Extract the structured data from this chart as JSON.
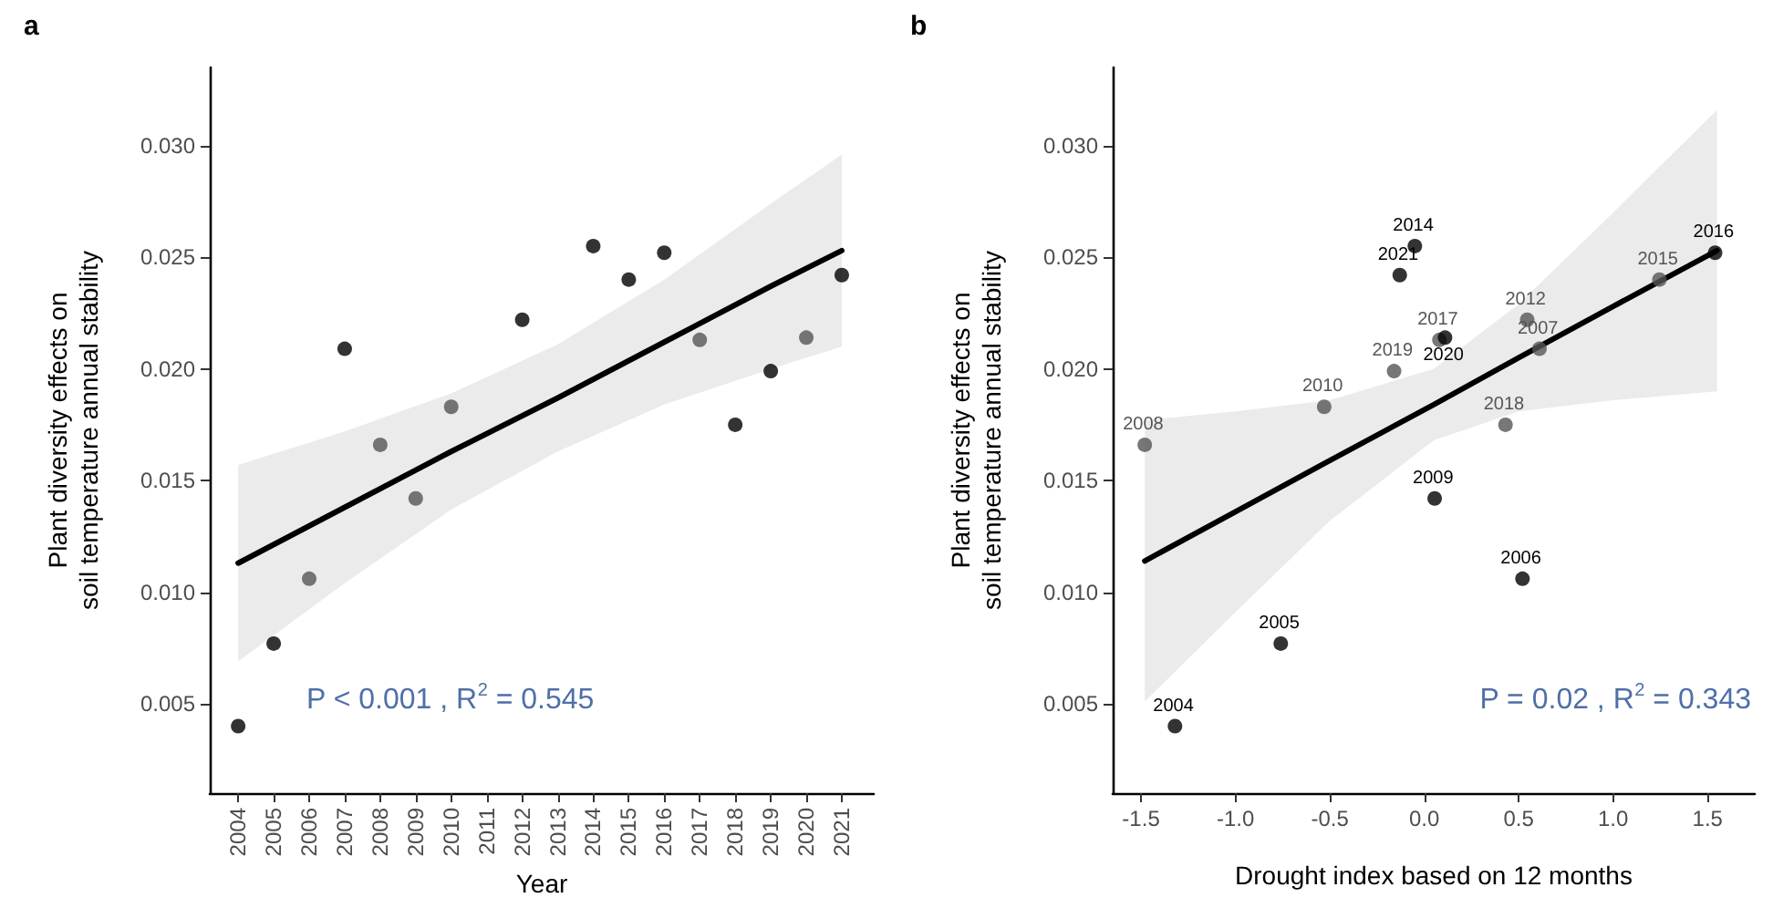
{
  "chart_data": [
    {
      "type": "scatter",
      "title": "a",
      "xlabel": "Year",
      "ylabel": "Plant diversity effects on\nsoil temperature annual stability",
      "xlim": [
        2003.2,
        2021.9
      ],
      "xticks": [
        2004,
        2005,
        2006,
        2007,
        2008,
        2009,
        2010,
        2011,
        2012,
        2013,
        2014,
        2015,
        2016,
        2017,
        2018,
        2019,
        2020,
        2021
      ],
      "ylim": [
        0.001,
        0.0335
      ],
      "yticks": [
        {
          "value": 0.005,
          "label": "0.005"
        },
        {
          "value": 0.01,
          "label": "0.010"
        },
        {
          "value": 0.015,
          "label": "0.015"
        },
        {
          "value": 0.02,
          "label": "0.020"
        },
        {
          "value": 0.025,
          "label": "0.025"
        },
        {
          "value": 0.03,
          "label": "0.030"
        }
      ],
      "grid": false,
      "annotations": [
        "P < 0.001 , R$^{2}$ = 0.545"
      ],
      "series": [
        {
          "marker": "circle",
          "x": [
            2004,
            2005,
            2006,
            2007,
            2008,
            2009,
            2010,
            2012,
            2014,
            2015,
            2016,
            2017,
            2018,
            2019,
            2020,
            2021
          ],
          "values": [
            0.004,
            0.0077,
            0.0106,
            0.0209,
            0.0166,
            0.0142,
            0.0183,
            0.0222,
            0.0255,
            0.024,
            0.0252,
            0.0213,
            0.0175,
            0.0199,
            0.0214,
            0.0242
          ],
          "colors": [
            "#000000",
            "#000000",
            "#555555",
            "#000000",
            "#555555",
            "#555555",
            "#555555",
            "#000000",
            "#000000",
            "#000000",
            "#000000",
            "#555555",
            "#000000",
            "#000000",
            "#555555",
            "#000000"
          ]
        },
        {
          "type": "line",
          "color": "#000000",
          "line_style": "solid",
          "x": [
            2004,
            2007,
            2010,
            2013,
            2016,
            2019,
            2021
          ],
          "values": [
            0.0113,
            0.0138,
            0.0163,
            0.0187,
            0.0212,
            0.0237,
            0.0253
          ],
          "lower": [
            0.0069,
            0.0104,
            0.0137,
            0.0163,
            0.0184,
            0.02,
            0.021
          ],
          "upper": [
            0.0157,
            0.0172,
            0.0189,
            0.0211,
            0.024,
            0.0274,
            0.0296
          ]
        }
      ]
    },
    {
      "type": "scatter",
      "title": "b",
      "xlabel": "Drought index based on 12 months",
      "ylabel": "Plant diversity effects on\nsoil temperature annual stability",
      "xlim": [
        -1.65,
        1.75
      ],
      "xticks": [
        {
          "value": -1.5,
          "label": "-1.5"
        },
        {
          "value": -1,
          "label": "-1.0"
        },
        {
          "value": -0.5,
          "label": "-0.5"
        },
        {
          "value": 0,
          "label": "0.0"
        },
        {
          "value": 0.5,
          "label": "0.5"
        },
        {
          "value": 1,
          "label": "1.0"
        },
        {
          "value": 1.5,
          "label": "1.5"
        }
      ],
      "ylim": [
        0.001,
        0.0335
      ],
      "yticks": [
        {
          "value": 0.005,
          "label": "0.005"
        },
        {
          "value": 0.01,
          "label": "0.010"
        },
        {
          "value": 0.015,
          "label": "0.015"
        },
        {
          "value": 0.02,
          "label": "0.020"
        },
        {
          "value": 0.025,
          "label": "0.025"
        },
        {
          "value": 0.03,
          "label": "0.030"
        }
      ],
      "grid": false,
      "annotations": [
        "P = 0.02 , R$^{2}$ = 0.343",
        {
          "text": "2004",
          "x": -1.32,
          "y": 0.004
        },
        {
          "text": "2005",
          "x": -0.76,
          "y": 0.0077
        },
        {
          "text": "2006",
          "x": 0.52,
          "y": 0.0106
        },
        {
          "text": "2007",
          "x": 0.61,
          "y": 0.0209
        },
        {
          "text": "2008",
          "x": -1.48,
          "y": 0.0166
        },
        {
          "text": "2009",
          "x": 0.055,
          "y": 0.0142
        },
        {
          "text": "2010",
          "x": -0.53,
          "y": 0.0183
        },
        {
          "text": "2012",
          "x": 0.545,
          "y": 0.0222
        },
        {
          "text": "2014",
          "x": -0.05,
          "y": 0.0255
        },
        {
          "text": "2015",
          "x": 1.245,
          "y": 0.024
        },
        {
          "text": "2016",
          "x": 1.54,
          "y": 0.0252
        },
        {
          "text": "2017",
          "x": 0.08,
          "y": 0.0213
        },
        {
          "text": "2018",
          "x": 0.43,
          "y": 0.0175
        },
        {
          "text": "2019",
          "x": -0.16,
          "y": 0.0199
        },
        {
          "text": "2020",
          "x": 0.11,
          "y": 0.0214
        },
        {
          "text": "2021",
          "x": -0.13,
          "y": 0.0242
        }
      ],
      "series": [
        {
          "marker": "circle",
          "x": [
            -1.32,
            -0.76,
            0.52,
            0.61,
            -1.48,
            0.055,
            -0.53,
            0.545,
            -0.05,
            1.245,
            1.54,
            0.08,
            0.43,
            -0.16,
            0.11,
            -0.13
          ],
          "values": [
            0.004,
            0.0077,
            0.0106,
            0.0209,
            0.0166,
            0.0142,
            0.0183,
            0.0222,
            0.0255,
            0.024,
            0.0252,
            0.0213,
            0.0175,
            0.0199,
            0.0214,
            0.0242
          ],
          "colors": [
            "#000000",
            "#000000",
            "#000000",
            "#555555",
            "#555555",
            "#000000",
            "#555555",
            "#555555",
            "#000000",
            "#555555",
            "#000000",
            "#555555",
            "#555555",
            "#555555",
            "#000000",
            "#000000"
          ]
        },
        {
          "type": "line",
          "color": "#000000",
          "line_style": "solid",
          "x": [
            -1.48,
            -1.0,
            -0.5,
            0.05,
            0.5,
            1.0,
            1.55
          ],
          "values": [
            0.0114,
            0.0136,
            0.0159,
            0.0184,
            0.0205,
            0.0228,
            0.0253
          ],
          "lower": [
            0.0051,
            0.0091,
            0.0132,
            0.0168,
            0.0181,
            0.0186,
            0.019
          ],
          "upper": [
            0.0177,
            0.0181,
            0.0186,
            0.02,
            0.0229,
            0.027,
            0.0316
          ]
        }
      ]
    }
  ]
}
